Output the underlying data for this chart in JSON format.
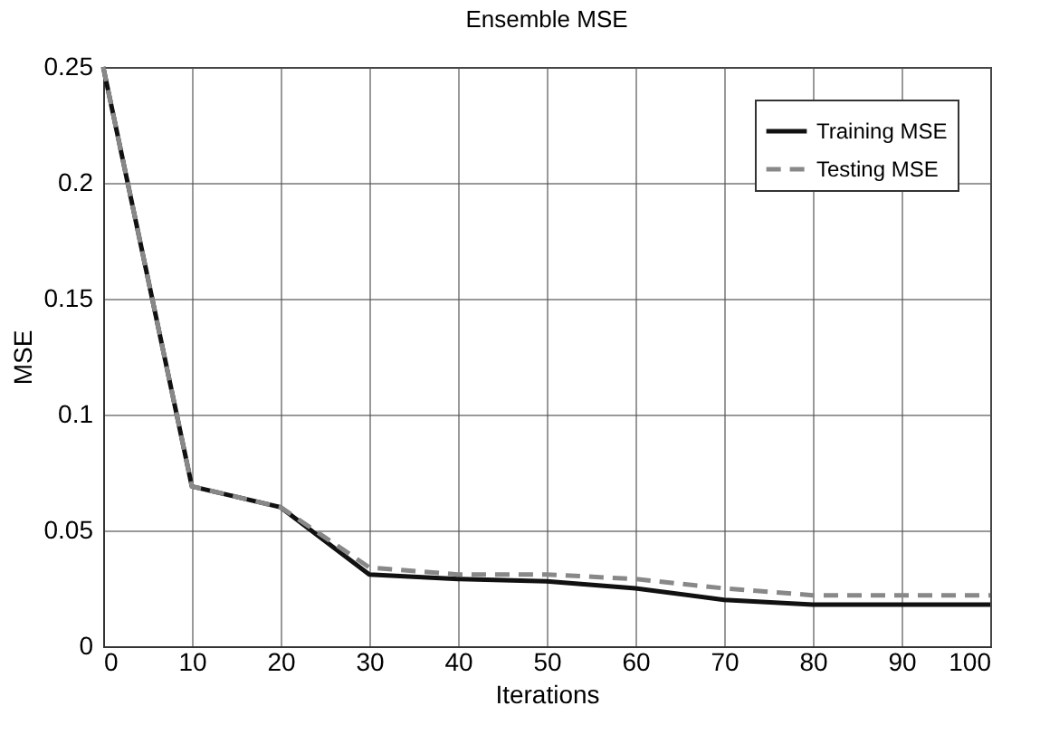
{
  "chart_data": {
    "type": "line",
    "title": "Ensemble MSE",
    "xlabel": "Iterations",
    "ylabel": "MSE",
    "x": [
      0,
      10,
      20,
      30,
      40,
      50,
      60,
      70,
      80,
      90,
      100
    ],
    "series": [
      {
        "name": "Training MSE",
        "color": "#111111",
        "line_style": "solid",
        "values": [
          0.25,
          0.069,
          0.06,
          0.031,
          0.029,
          0.028,
          0.025,
          0.02,
          0.018,
          0.018,
          0.018
        ]
      },
      {
        "name": "Testing MSE",
        "color": "#888888",
        "line_style": "dashed",
        "values": [
          0.25,
          0.069,
          0.06,
          0.034,
          0.031,
          0.031,
          0.029,
          0.025,
          0.022,
          0.022,
          0.022
        ]
      }
    ],
    "xlim": [
      0,
      100
    ],
    "xticks": [
      0,
      10,
      20,
      30,
      40,
      50,
      60,
      70,
      80,
      90,
      100
    ],
    "ylim": [
      0,
      0.25
    ],
    "yticks": [
      0,
      0.05,
      0.1,
      0.15,
      0.2,
      0.25
    ],
    "grid": true,
    "legend": "top right",
    "marker": "none"
  }
}
